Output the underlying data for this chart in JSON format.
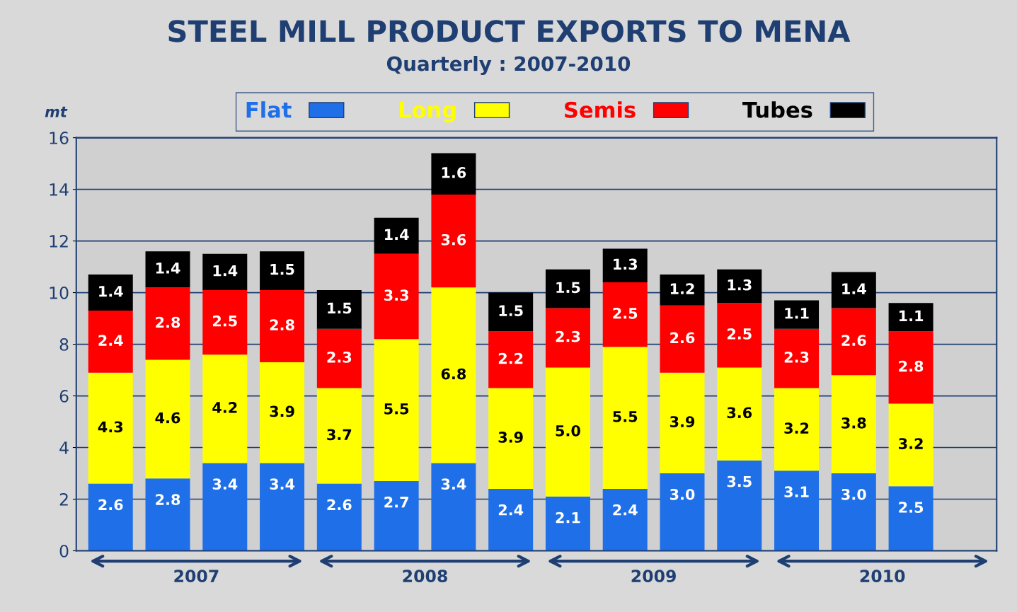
{
  "chart_data": {
    "type": "bar",
    "title": "STEEL MILL PRODUCT EXPORTS TO MENA",
    "subtitle": "Quarterly : 2007-2010",
    "ylabel": "mt",
    "categories": [
      null,
      null,
      null,
      null,
      null,
      null,
      null,
      null,
      null,
      null,
      null,
      null,
      null,
      null,
      null
    ],
    "series": [
      {
        "name": "Flat",
        "color": "#1f6fe8",
        "values": [
          2.6,
          2.8,
          3.4,
          3.4,
          2.6,
          2.7,
          3.4,
          2.4,
          2.1,
          2.4,
          3.0,
          3.5,
          3.1,
          3.0,
          2.5
        ],
        "value_labels": [
          "2.6",
          "2.8",
          "3.4",
          "3.4",
          "2.6",
          "2.7",
          "3.4",
          "2.4",
          "2.1",
          "2.4",
          "3.0",
          "3.5",
          "3.1",
          "3.0",
          "2.5"
        ]
      },
      {
        "name": "Long",
        "color": "#ffff00",
        "values": [
          4.3,
          4.6,
          4.2,
          3.9,
          3.7,
          5.5,
          6.8,
          3.9,
          5.0,
          5.5,
          3.9,
          3.6,
          3.2,
          3.8,
          3.2
        ],
        "value_labels": [
          "4.3",
          "4.6",
          "4.2",
          "3.9",
          "3.7",
          "5.5",
          "6.8",
          "3.9",
          "5.0",
          "5.5",
          "3.9",
          "3.6",
          "3.2",
          "3.8",
          "3.2"
        ]
      },
      {
        "name": "Semis",
        "color": "#ff0000",
        "values": [
          2.4,
          2.8,
          2.5,
          2.8,
          2.3,
          3.3,
          3.6,
          2.2,
          2.3,
          2.5,
          2.6,
          2.5,
          2.3,
          2.6,
          2.8
        ],
        "value_labels": [
          "2.4",
          "2.8",
          "2.5",
          "2.8",
          "2.3",
          "3.3",
          "3.6",
          "2.2",
          "2.3",
          "2.5",
          "2.6",
          "2.5",
          "2.3",
          "2.6",
          "2.8"
        ]
      },
      {
        "name": "Tubes",
        "color": "#000000",
        "values": [
          1.4,
          1.4,
          1.4,
          1.5,
          1.5,
          1.4,
          1.6,
          1.5,
          1.5,
          1.3,
          1.2,
          1.3,
          1.1,
          1.4,
          1.1
        ],
        "value_labels": [
          "1.4",
          "1.4",
          "1.4",
          "1.5",
          "1.5",
          "1.4",
          "1.6",
          "1.5",
          "1.5",
          "1.3",
          "1.2",
          "1.3",
          "1.1",
          "1.4",
          "1.1"
        ]
      }
    ],
    "stacked": true,
    "ylim": [
      0,
      16
    ],
    "yticks": [
      0,
      2,
      4,
      6,
      8,
      10,
      12,
      14,
      16
    ],
    "grid": "y",
    "legend": "top",
    "annotations": [
      "2007",
      "2008",
      "2009",
      "2010"
    ]
  }
}
